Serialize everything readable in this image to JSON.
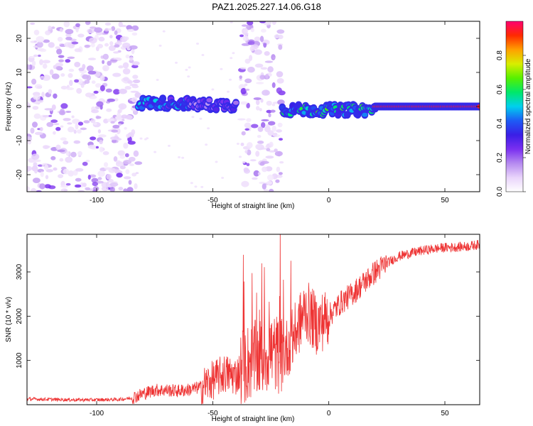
{
  "title": "PAZ1.2025.227.14.06.G18",
  "chart_data": [
    {
      "type": "heatmap",
      "xlabel": "Height of straight line (km)",
      "ylabel": "Frequency (Hz)",
      "xlim": [
        -130,
        65
      ],
      "ylim": [
        -25,
        25
      ],
      "x_ticks": [
        -100,
        -50,
        0,
        50
      ],
      "y_ticks": [
        -20,
        -10,
        0,
        10,
        20
      ],
      "colorbar": {
        "label": "Normalized spectral amplitude",
        "range": [
          0,
          1
        ],
        "ticks": [
          0.0,
          0.2,
          0.4,
          0.6,
          0.8
        ],
        "colors": [
          "#ffffff",
          "#e9d4fb",
          "#b68af0",
          "#7a2ff0",
          "#3a1ee6",
          "#1d5bf5",
          "#00d0ee",
          "#00e86a",
          "#56f000",
          "#d8ee00",
          "#ffa000",
          "#ff2a00",
          "#ff0070"
        ]
      },
      "ridge": {
        "segments": [
          {
            "x_from": -82,
            "x_to": -60,
            "freq": 1.0,
            "amplitude": 0.4
          },
          {
            "x_from": -60,
            "x_to": -40,
            "freq": 0.5,
            "amplitude": 0.25
          },
          {
            "x_from": -20,
            "x_to": 20,
            "freq": -1.0,
            "amplitude": 0.5
          },
          {
            "x_from": 20,
            "x_to": 65,
            "freq": 0.0,
            "amplitude": 0.95
          }
        ]
      },
      "noise_region_x": [
        [
          -130,
          -82
        ],
        [
          -38,
          -20
        ]
      ]
    },
    {
      "type": "line",
      "xlabel": "Height of straight line (km)",
      "ylabel": "SNR (10 * v/v)",
      "xlim": [
        -130,
        65
      ],
      "ylim": [
        0,
        3850
      ],
      "x_ticks": [
        -100,
        -50,
        0,
        50
      ],
      "y_ticks": [
        1000,
        2000,
        3000
      ],
      "series": [
        {
          "color": "#ee3333",
          "x": [
            -130,
            -120,
            -110,
            -100,
            -90,
            -85,
            -80,
            -75,
            -70,
            -65,
            -60,
            -55,
            -50,
            -45,
            -40,
            -35,
            -30,
            -25,
            -20,
            -15,
            -10,
            -5,
            0,
            5,
            10,
            15,
            20,
            25,
            30,
            35,
            40,
            45,
            50,
            55,
            60,
            65
          ],
          "values": [
            130,
            120,
            110,
            110,
            120,
            150,
            250,
            330,
            330,
            310,
            340,
            400,
            550,
            700,
            650,
            950,
            1050,
            1200,
            1100,
            1550,
            2150,
            1800,
            2000,
            2300,
            2500,
            2750,
            3000,
            3200,
            3350,
            3420,
            3480,
            3520,
            3550,
            3560,
            3580,
            3620
          ]
        }
      ]
    }
  ]
}
